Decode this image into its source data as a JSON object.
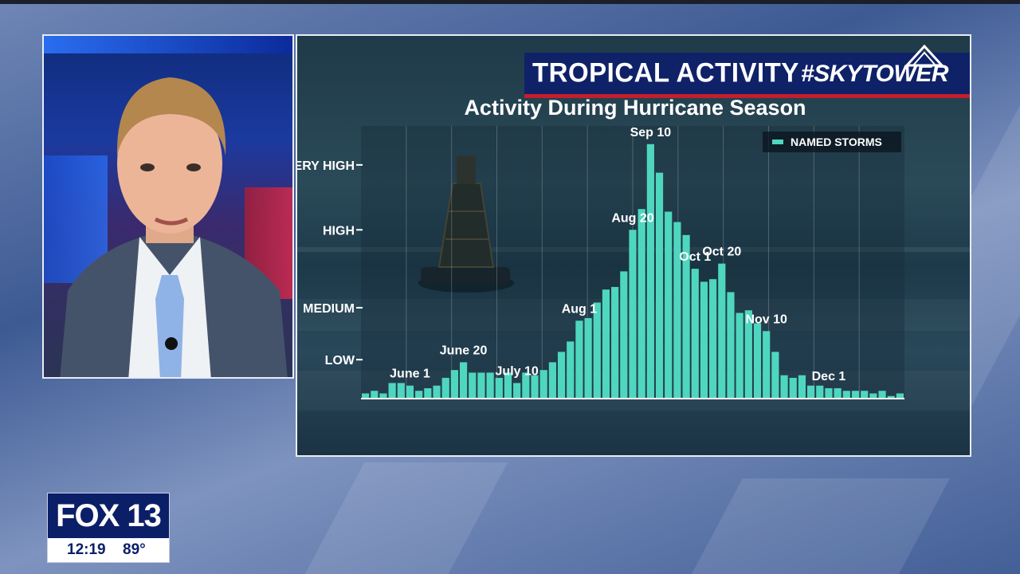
{
  "header": {
    "title": "TROPICAL ACTIVITY",
    "hashtag": "#SKYTOWER"
  },
  "station": {
    "logo": "FOX 13",
    "time": "12:19",
    "temperature": "89°"
  },
  "colors": {
    "bar": "#4fd6bf",
    "title_bar": "#0f2268",
    "accent_red": "#c41e2e"
  },
  "chart_data": {
    "type": "bar",
    "title": "Activity During Hurricane Season",
    "legend": [
      {
        "name": "NAMED STORMS",
        "color": "#4fd6bf",
        "position": "top-right"
      }
    ],
    "y_ticks": [
      {
        "label": "LOW",
        "value": 1.5
      },
      {
        "label": "MEDIUM",
        "value": 3.5
      },
      {
        "label": "HIGH",
        "value": 6.5
      },
      {
        "label": "VERY HIGH",
        "value": 9
      }
    ],
    "ylim": [
      0,
      10.5
    ],
    "values": [
      0.2,
      0.3,
      0.2,
      0.6,
      0.6,
      0.5,
      0.3,
      0.4,
      0.5,
      0.8,
      1.1,
      1.4,
      1.0,
      1.0,
      1.0,
      0.8,
      1.0,
      0.6,
      1.0,
      0.9,
      1.1,
      1.4,
      1.8,
      2.2,
      3.0,
      3.1,
      3.7,
      4.2,
      4.3,
      4.9,
      6.5,
      7.3,
      9.8,
      8.7,
      7.2,
      6.8,
      6.3,
      5.0,
      4.5,
      4.6,
      5.2,
      4.1,
      3.3,
      3.4,
      2.9,
      2.6,
      1.8,
      0.9,
      0.8,
      0.9,
      0.5,
      0.5,
      0.4,
      0.4,
      0.3,
      0.3,
      0.3,
      0.2,
      0.3,
      0.1,
      0.2
    ],
    "annotations": [
      {
        "label": "June 1",
        "index": 5
      },
      {
        "label": "June 20",
        "index": 11
      },
      {
        "label": "July 10",
        "index": 17
      },
      {
        "label": "Aug 1",
        "index": 24
      },
      {
        "label": "Aug 20",
        "index": 30
      },
      {
        "label": "Sep 10",
        "index": 32
      },
      {
        "label": "Oct 1",
        "index": 37
      },
      {
        "label": "Oct 20",
        "index": 40
      },
      {
        "label": "Nov 10",
        "index": 45
      },
      {
        "label": "Dec 1",
        "index": 52
      }
    ]
  }
}
